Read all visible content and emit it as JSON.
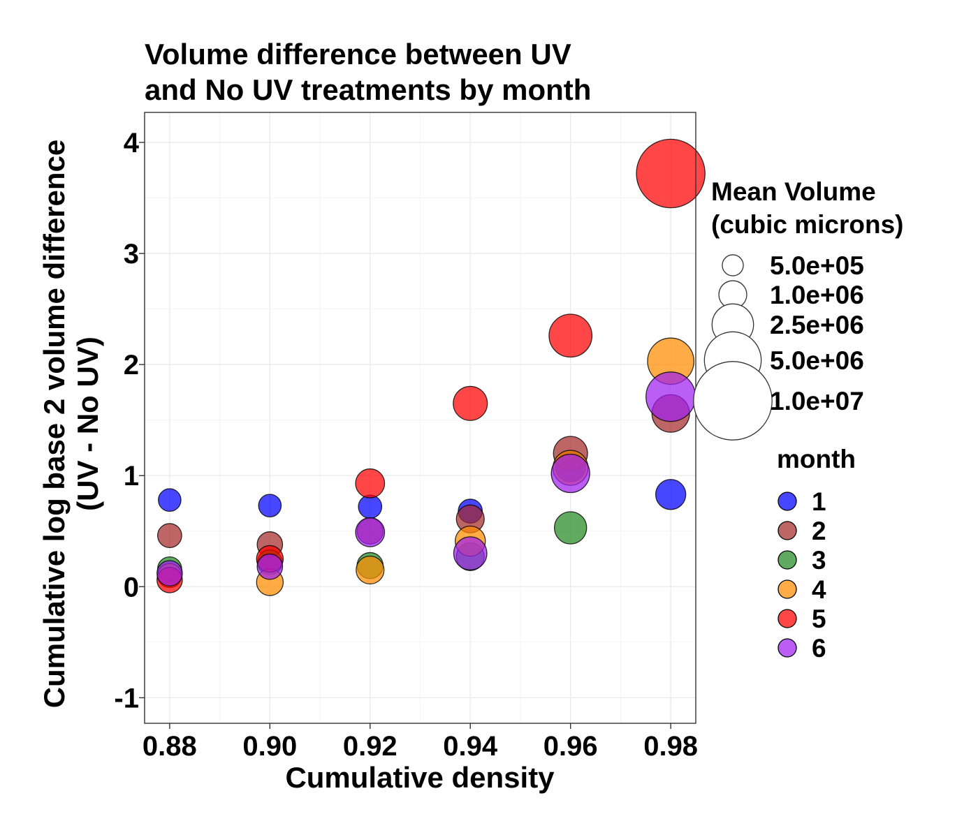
{
  "chart_data": {
    "type": "scatter",
    "title": "Volume difference between UV\nand No UV treatments by month",
    "xlabel": "Cumulative density",
    "ylabel": "Cumulative log base 2 volume difference\n(UV - No UV)",
    "xlim": [
      0.875,
      0.985
    ],
    "ylim": [
      -1.23,
      4.27
    ],
    "x_ticks": [
      0.88,
      0.9,
      0.92,
      0.94,
      0.96,
      0.98
    ],
    "x_tick_labels": [
      "0.88",
      "0.90",
      "0.92",
      "0.94",
      "0.96",
      "0.98"
    ],
    "y_ticks": [
      -1,
      0,
      1,
      2,
      3,
      4
    ],
    "y_tick_labels": [
      "-1",
      "0",
      "1",
      "2",
      "3",
      "4"
    ],
    "grid": true,
    "legend_position": "right",
    "size_legend": {
      "title": "Mean Volume\n(cubic microns)",
      "entries": [
        {
          "label": "5.0e+05",
          "value": 500000
        },
        {
          "label": "1.0e+06",
          "value": 1000000
        },
        {
          "label": "2.5e+06",
          "value": 2500000
        },
        {
          "label": "5.0e+06",
          "value": 5000000
        },
        {
          "label": "1.0e+07",
          "value": 10000000
        }
      ]
    },
    "color_legend": {
      "title": "month",
      "entries": [
        {
          "label": "1",
          "color": "#0000FF"
        },
        {
          "label": "2",
          "color": "#A52A2A"
        },
        {
          "label": "3",
          "color": "#228B22"
        },
        {
          "label": "4",
          "color": "#FF8C00"
        },
        {
          "label": "5",
          "color": "#FF0000"
        },
        {
          "label": "6",
          "color": "#A020F0"
        }
      ]
    },
    "series": [
      {
        "name": "1",
        "color": "#0000FF",
        "points": [
          {
            "x": 0.88,
            "y": 0.78,
            "volume": 600000
          },
          {
            "x": 0.9,
            "y": 0.73,
            "volume": 600000
          },
          {
            "x": 0.92,
            "y": 0.72,
            "volume": 650000
          },
          {
            "x": 0.94,
            "y": 0.68,
            "volume": 700000
          },
          {
            "x": 0.96,
            "y": 1.08,
            "volume": 1200000
          },
          {
            "x": 0.98,
            "y": 0.83,
            "volume": 1200000
          }
        ]
      },
      {
        "name": "2",
        "color": "#A52A2A",
        "points": [
          {
            "x": 0.88,
            "y": 0.46,
            "volume": 700000
          },
          {
            "x": 0.9,
            "y": 0.38,
            "volume": 800000
          },
          {
            "x": 0.92,
            "y": 0.5,
            "volume": 850000
          },
          {
            "x": 0.94,
            "y": 0.61,
            "volume": 1000000
          },
          {
            "x": 0.96,
            "y": 1.2,
            "volume": 1600000
          },
          {
            "x": 0.98,
            "y": 1.56,
            "volume": 2000000
          }
        ]
      },
      {
        "name": "3",
        "color": "#228B22",
        "points": [
          {
            "x": 0.88,
            "y": 0.16,
            "volume": 700000
          },
          {
            "x": 0.9,
            "y": 0.22,
            "volume": 750000
          },
          {
            "x": 0.92,
            "y": 0.19,
            "volume": 850000
          },
          {
            "x": 0.94,
            "y": 0.27,
            "volume": 1000000
          },
          {
            "x": 0.96,
            "y": 0.53,
            "volume": 1400000
          }
        ]
      },
      {
        "name": "4",
        "color": "#FF8C00",
        "points": [
          {
            "x": 0.88,
            "y": 0.1,
            "volume": 700000
          },
          {
            "x": 0.9,
            "y": 0.04,
            "volume": 900000
          },
          {
            "x": 0.92,
            "y": 0.15,
            "volume": 1000000
          },
          {
            "x": 0.94,
            "y": 0.41,
            "volume": 1200000
          },
          {
            "x": 0.96,
            "y": 1.07,
            "volume": 1700000
          },
          {
            "x": 0.98,
            "y": 2.03,
            "volume": 3200000
          }
        ]
      },
      {
        "name": "5",
        "color": "#FF0000",
        "points": [
          {
            "x": 0.88,
            "y": 0.06,
            "volume": 800000
          },
          {
            "x": 0.9,
            "y": 0.25,
            "volume": 900000
          },
          {
            "x": 0.92,
            "y": 0.93,
            "volume": 1100000
          },
          {
            "x": 0.94,
            "y": 1.65,
            "volume": 1600000
          },
          {
            "x": 0.96,
            "y": 2.26,
            "volume": 2700000
          },
          {
            "x": 0.98,
            "y": 3.72,
            "volume": 7500000
          }
        ]
      },
      {
        "name": "6",
        "color": "#A020F0",
        "points": [
          {
            "x": 0.88,
            "y": 0.12,
            "volume": 800000
          },
          {
            "x": 0.9,
            "y": 0.18,
            "volume": 800000
          },
          {
            "x": 0.92,
            "y": 0.49,
            "volume": 1100000
          },
          {
            "x": 0.94,
            "y": 0.3,
            "volume": 1500000
          },
          {
            "x": 0.96,
            "y": 1.02,
            "volume": 2100000
          },
          {
            "x": 0.98,
            "y": 1.71,
            "volume": 3700000
          }
        ]
      }
    ]
  }
}
